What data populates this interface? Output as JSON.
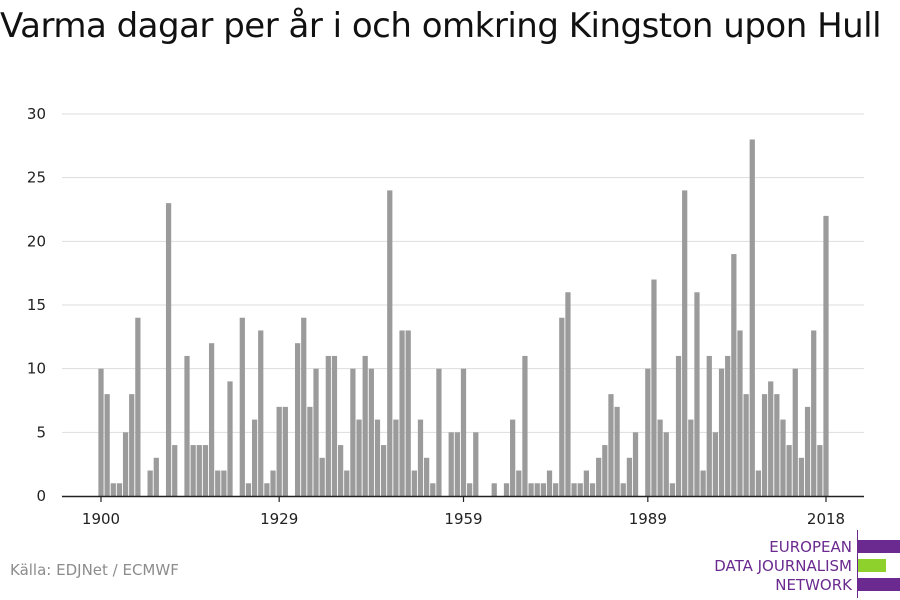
{
  "chart_data": {
    "type": "bar",
    "title": "Varma dagar per år i och omkring Kingston upon Hull",
    "xlabel": "",
    "ylabel": "",
    "x": [
      1900,
      1901,
      1902,
      1903,
      1904,
      1905,
      1906,
      1907,
      1908,
      1909,
      1910,
      1911,
      1912,
      1913,
      1914,
      1915,
      1916,
      1917,
      1918,
      1919,
      1920,
      1921,
      1922,
      1923,
      1924,
      1925,
      1926,
      1927,
      1928,
      1929,
      1930,
      1931,
      1932,
      1933,
      1934,
      1935,
      1936,
      1937,
      1938,
      1939,
      1940,
      1941,
      1942,
      1943,
      1944,
      1945,
      1946,
      1947,
      1948,
      1949,
      1950,
      1951,
      1952,
      1953,
      1954,
      1955,
      1956,
      1957,
      1958,
      1959,
      1960,
      1961,
      1962,
      1963,
      1964,
      1965,
      1966,
      1967,
      1968,
      1969,
      1970,
      1971,
      1972,
      1973,
      1974,
      1975,
      1976,
      1977,
      1978,
      1979,
      1980,
      1981,
      1982,
      1983,
      1984,
      1985,
      1986,
      1987,
      1988,
      1989,
      1990,
      1991,
      1992,
      1993,
      1994,
      1995,
      1996,
      1997,
      1998,
      1999,
      2000,
      2001,
      2002,
      2003,
      2004,
      2005,
      2006,
      2007,
      2008,
      2009,
      2010,
      2011,
      2012,
      2013,
      2014,
      2015,
      2016,
      2017,
      2018
    ],
    "values": [
      10,
      8,
      1,
      1,
      5,
      8,
      14,
      0,
      2,
      3,
      0,
      23,
      4,
      0,
      11,
      4,
      4,
      4,
      12,
      2,
      2,
      9,
      0,
      14,
      1,
      6,
      13,
      1,
      2,
      7,
      7,
      0,
      12,
      14,
      7,
      10,
      3,
      11,
      11,
      4,
      2,
      10,
      6,
      11,
      10,
      6,
      4,
      24,
      6,
      13,
      13,
      2,
      6,
      3,
      1,
      10,
      0,
      5,
      5,
      10,
      1,
      5,
      0,
      0,
      1,
      0,
      1,
      6,
      2,
      11,
      1,
      1,
      1,
      2,
      1,
      14,
      16,
      1,
      1,
      2,
      1,
      3,
      4,
      8,
      7,
      1,
      3,
      5,
      0,
      10,
      17,
      6,
      5,
      1,
      11,
      24,
      6,
      16,
      2,
      11,
      5,
      10,
      11,
      19,
      13,
      8,
      28,
      2,
      8,
      9,
      8,
      6,
      4,
      10,
      3,
      7,
      13,
      4,
      22
    ],
    "ylim": [
      0,
      30
    ],
    "yticks": [
      0,
      5,
      10,
      15,
      20,
      25,
      30
    ],
    "xticks": [
      1900,
      1929,
      1959,
      1989,
      2018
    ],
    "bar_color": "#9b9b9b",
    "grid": true
  },
  "source": "Källa: EDJNet / ECMWF",
  "logo": {
    "lines": [
      "EUROPEAN",
      "DATA JOURNALISM",
      "NETWORK"
    ],
    "colors": {
      "purple": "#6a2a8f",
      "green": "#8fd12c"
    }
  }
}
